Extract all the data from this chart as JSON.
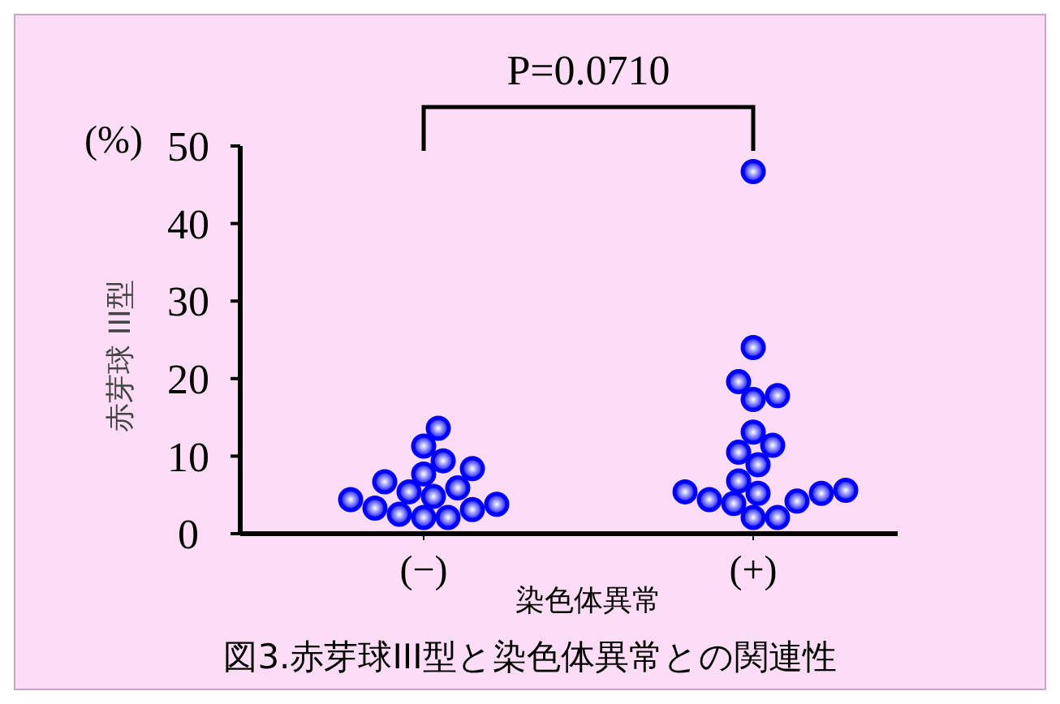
{
  "chart_data": {
    "type": "scatter",
    "title": "図3.赤芽球III型と染色体異常との関連性",
    "xlabel": "染色体異常",
    "ylabel": "赤芽球 III型",
    "categories": [
      "(−)",
      "(+)"
    ],
    "ylim": [
      0,
      50
    ],
    "yticks": [
      0,
      10,
      20,
      30,
      40,
      50
    ],
    "marker": "circle",
    "annotations": [
      "(%)",
      "P=0.0710"
    ],
    "series": [
      {
        "color": "#0000ff",
        "x": [
          "(−)",
          "(−)",
          "(−)",
          "(−)",
          "(−)",
          "(−)",
          "(−)",
          "(−)",
          "(−)",
          "(−)",
          "(−)",
          "(−)",
          "(−)",
          "(−)",
          "(−)",
          "(−)"
        ],
        "values": [
          13.6,
          11.3,
          9.4,
          8.4,
          7.7,
          6.7,
          5.4,
          5.9,
          4.8,
          3.8,
          4.4,
          3.1,
          2.1,
          2.1,
          2.5,
          3.3
        ]
      },
      {
        "color": "#0000ff",
        "x": [
          "(+)",
          "(+)",
          "(+)",
          "(+)",
          "(+)",
          "(+)",
          "(+)",
          "(+)",
          "(+)",
          "(+)",
          "(+)",
          "(+)",
          "(+)",
          "(+)",
          "(+)",
          "(+)",
          "(+)",
          "(+)",
          "(+)"
        ],
        "values": [
          46.7,
          24.0,
          19.6,
          17.3,
          17.8,
          13.1,
          11.4,
          10.5,
          8.9,
          6.8,
          5.2,
          4.4,
          5.2,
          4.2,
          5.6,
          3.9,
          5.4,
          2.1,
          2.1
        ]
      }
    ]
  }
}
